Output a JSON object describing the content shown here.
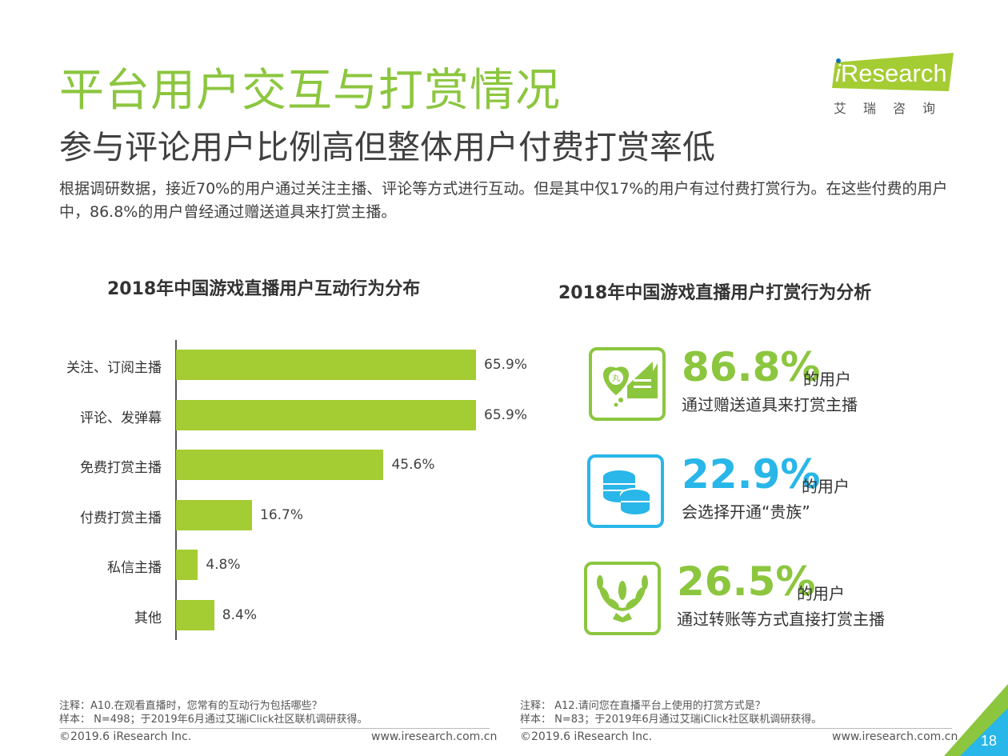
{
  "header": {
    "title": "平台用户交互与打赏情况",
    "subtitle": "参与评论用户比例高但整体用户付费打赏率低",
    "intro": "根据调研数据，接近70%的用户通过关注主播、评论等方式进行互动。但是其中仅17%的用户有过付费打赏行为。在这些付费的用户中，86.8%的用户曾经通过赠送道具来打赏主播。"
  },
  "logo": {
    "text": "Research",
    "cn": "艾瑞咨询",
    "colors": {
      "band": "#a4cc33",
      "dot": "#1a6fb5"
    }
  },
  "chart_data": {
    "type": "bar",
    "orientation": "horizontal",
    "title": "2018年中国游戏直播用户互动行为分布",
    "categories": [
      "关注、订阅主播",
      "评论、发弹幕",
      "免费打赏主播",
      "付费打赏主播",
      "私信主播",
      "其他"
    ],
    "values": [
      65.9,
      65.9,
      45.6,
      16.7,
      4.8,
      8.4
    ],
    "value_labels": [
      "65.9%",
      "65.9%",
      "45.6%",
      "16.7%",
      "4.8%",
      "8.4%"
    ],
    "unit": "%",
    "xlim": [
      0,
      100
    ],
    "color": "#a4cc33",
    "grid": false
  },
  "right_panel": {
    "title": "2018年中国游戏直播用户打赏行为分析",
    "stats": [
      {
        "percent": "86.8%",
        "unit": "的用户",
        "desc": "通过赠送道具来打赏主播",
        "icon": "gift-coin-icon",
        "color": "#8cc63f"
      },
      {
        "percent": "22.9%",
        "unit": "的用户",
        "desc": "会选择开通“贵族”",
        "icon": "coin-stack-icon",
        "color": "#29b6e8"
      },
      {
        "percent": "26.5%",
        "unit": "的用户",
        "desc": "通过转账等方式直接打赏主播",
        "icon": "laurel-wreath-icon",
        "color": "#8cc63f"
      }
    ]
  },
  "notes": {
    "left_note": "注释：A10.在观看直播时，您常有的互动行为包括哪些？",
    "left_sample": "样本：  N=498；于2019年6月通过艾瑞iClick社区联机调研获得。",
    "right_note": "注释：  A12.请问您在直播平台上使用的打赏方式是？",
    "right_sample": "样本：  N=83；于2019年6月通过艾瑞iClick社区联机调研获得。"
  },
  "footer": {
    "copyright": "©2019.6 iResearch Inc.",
    "website": "www.iresearch.com.cn",
    "page_number": "18"
  }
}
